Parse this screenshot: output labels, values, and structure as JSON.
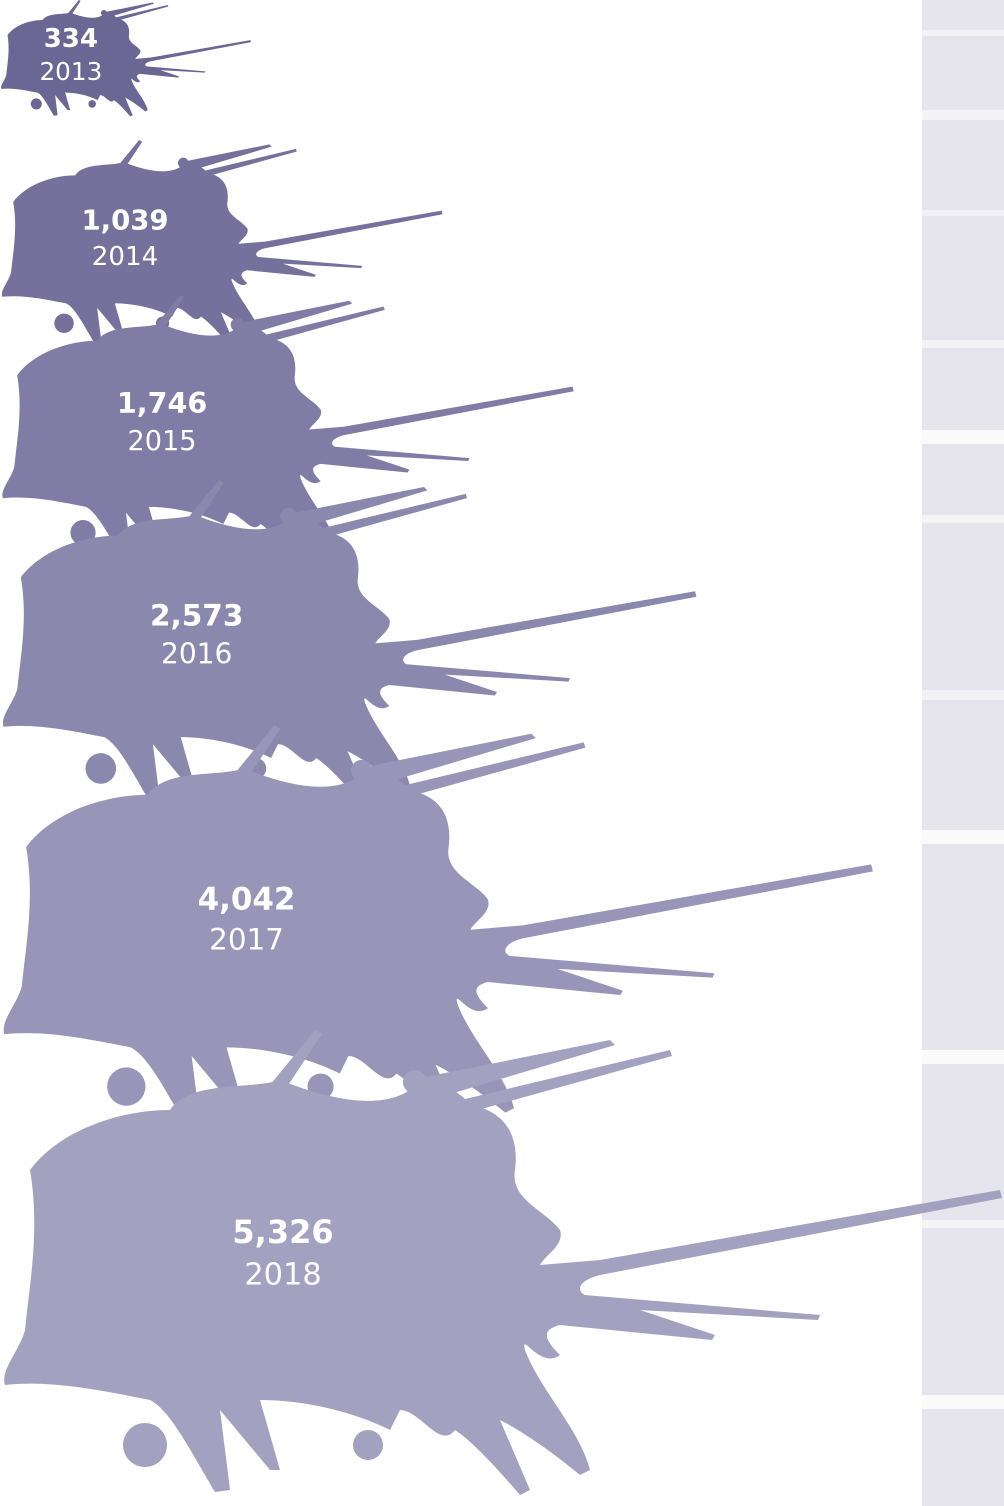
{
  "chart_data": {
    "type": "splat",
    "categories": [
      "2013",
      "2014",
      "2015",
      "2016",
      "2017",
      "2018"
    ],
    "values": [
      334,
      1039,
      1746,
      2573,
      4042,
      5326
    ],
    "value_labels": [
      "334",
      "1,039",
      "1,746",
      "2,573",
      "4,042",
      "5,326"
    ],
    "colors": [
      "#6b6794",
      "#75719c",
      "#807ca5",
      "#8b88ae",
      "#9895b8",
      "#a3a1c0"
    ]
  }
}
